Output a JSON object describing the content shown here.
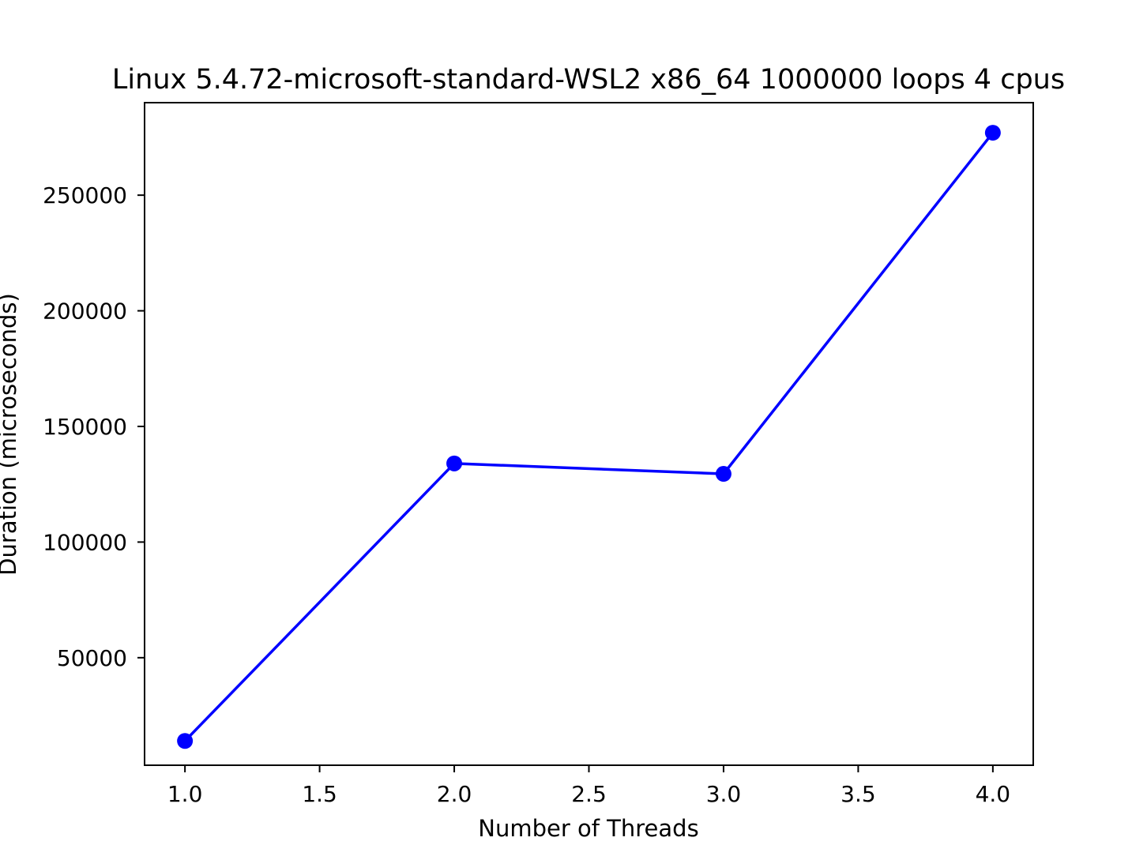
{
  "chart_data": {
    "type": "line",
    "title": "Linux 5.4.72-microsoft-standard-WSL2 x86_64 1000000 loops 4 cpus",
    "xlabel": "Number of Threads",
    "ylabel": "Duration (microseconds)",
    "xlim": [
      0.85,
      4.15
    ],
    "ylim": [
      3500,
      290000
    ],
    "xticks": [
      1.0,
      1.5,
      2.0,
      2.5,
      3.0,
      3.5,
      4.0
    ],
    "xtick_labels": [
      "1.0",
      "1.5",
      "2.0",
      "2.5",
      "3.0",
      "3.5",
      "4.0"
    ],
    "yticks": [
      50000,
      100000,
      150000,
      200000,
      250000
    ],
    "ytick_labels": [
      "50000",
      "100000",
      "150000",
      "200000",
      "250000"
    ],
    "grid": false,
    "series": [
      {
        "x": [
          1,
          2,
          3,
          4
        ],
        "values": [
          14000,
          134000,
          129500,
          277000
        ],
        "color": "#0000ff",
        "marker": "circle"
      }
    ]
  }
}
